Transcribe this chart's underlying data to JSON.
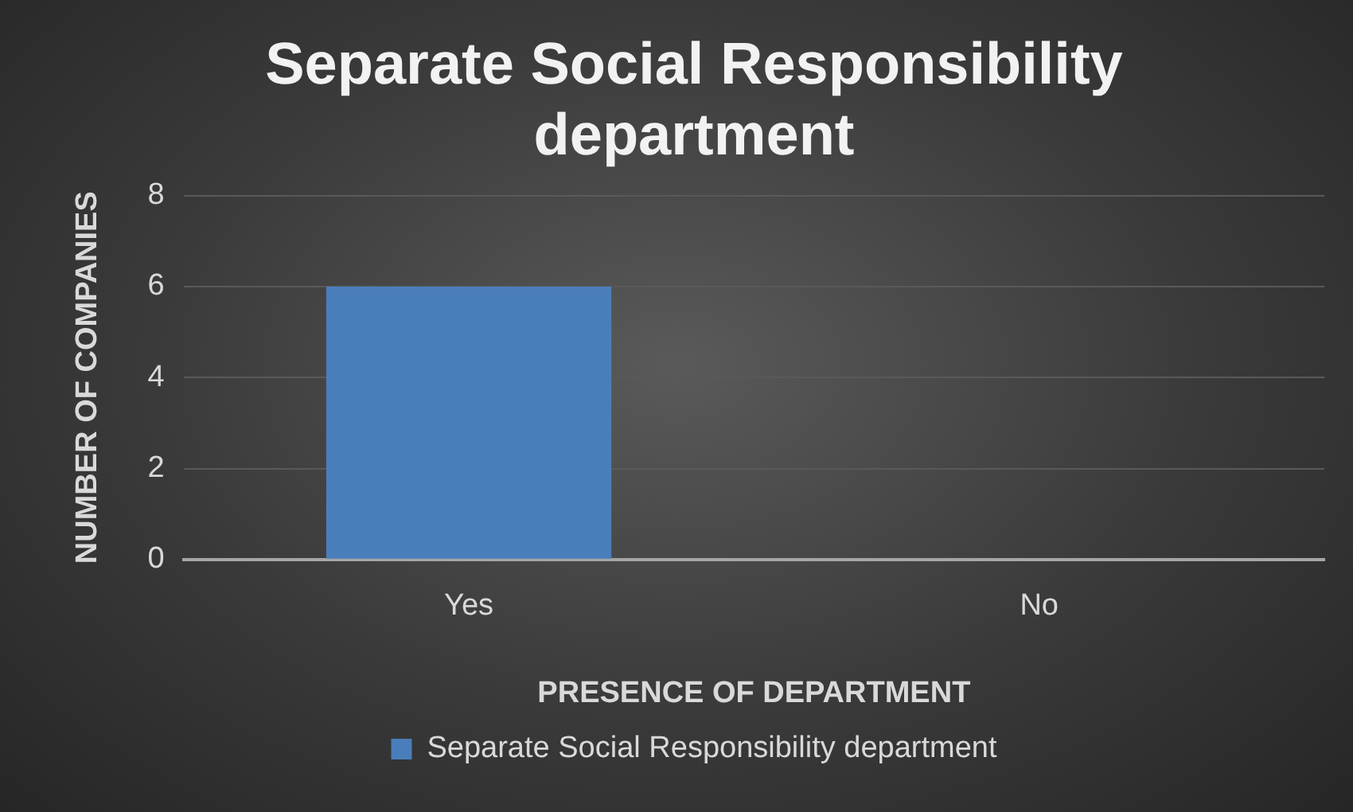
{
  "chart_data": {
    "type": "bar",
    "title": "Separate Social Responsibility department",
    "xlabel": "PRESENCE OF DEPARTMENT",
    "ylabel": "NUMBER OF COMPANIES",
    "categories": [
      "Yes",
      "No"
    ],
    "series": [
      {
        "name": "Separate Social Responsibility department",
        "color": "#4a7ebb",
        "values": [
          6,
          0
        ]
      }
    ],
    "ylim": [
      0,
      8
    ],
    "yticks": [
      0,
      2,
      4,
      6,
      8
    ],
    "grid": "y",
    "legend": "bottom"
  }
}
